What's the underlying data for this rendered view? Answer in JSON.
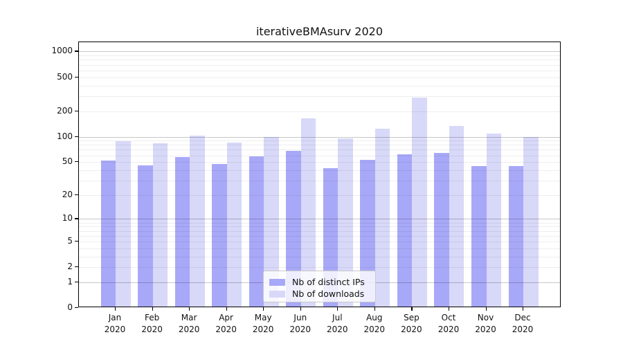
{
  "title": "iterativeBMAsurv 2020",
  "legend": {
    "items": [
      {
        "label": "Nb of distinct IPs",
        "color": "#a8a8f8"
      },
      {
        "label": "Nb of downloads",
        "color": "#d8d8f8"
      }
    ]
  },
  "axes": {
    "y_tick_values": [
      0,
      1,
      2,
      5,
      10,
      20,
      50,
      100,
      200,
      500,
      1000
    ],
    "y_tick_labels": [
      "0",
      "1",
      "2",
      "5",
      "10",
      "20",
      "50",
      "100",
      "200",
      "500",
      "1000"
    ],
    "x_tick_year": "2020"
  },
  "chart_data": {
    "type": "bar",
    "title": "iterativeBMAsurv 2020",
    "xlabel": "",
    "ylabel": "",
    "scale": "log1p",
    "ylim": [
      0,
      1290
    ],
    "grid": true,
    "legend_position": "bottom-center",
    "categories": [
      "Jan",
      "Feb",
      "Mar",
      "Apr",
      "May",
      "Jun",
      "Jul",
      "Aug",
      "Sep",
      "Oct",
      "Nov",
      "Dec"
    ],
    "category_year": "2020",
    "y_ticks": [
      0,
      1,
      2,
      5,
      10,
      20,
      50,
      100,
      200,
      500,
      1000
    ],
    "series": [
      {
        "name": "Nb of distinct IPs",
        "color": "#a8a8f8",
        "values": [
          50,
          44,
          55,
          46,
          56,
          65,
          41,
          51,
          60,
          62,
          43,
          43
        ]
      },
      {
        "name": "Nb of downloads",
        "color": "#d8d8f8",
        "values": [
          85,
          80,
          99,
          82,
          95,
          158,
          92,
          120,
          278,
          130,
          105,
          95
        ]
      }
    ]
  },
  "colors": {
    "ips_bar": "#a8a8f8",
    "downloads_bar": "#d8d8f8",
    "spine": "#000000",
    "minor_grid": "#ededed",
    "major_grid": "#c7c7c7"
  }
}
